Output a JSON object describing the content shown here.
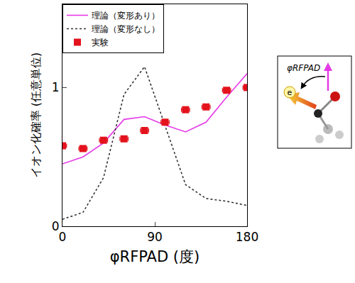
{
  "chart_data": {
    "type": "line",
    "xlabel": "φRFPAD (度)",
    "ylabel": "イオン化確率 (任意単位)",
    "x": [
      0,
      20,
      40,
      60,
      80,
      100,
      120,
      140,
      160,
      180
    ],
    "series": [
      {
        "name": "理論（変形あり）",
        "type": "line",
        "color": "#e53ae6",
        "line_style": "solid",
        "values": [
          0.45,
          0.5,
          0.6,
          0.77,
          0.79,
          0.73,
          0.68,
          0.75,
          0.93,
          1.1
        ]
      },
      {
        "name": "理論（変形なし）",
        "type": "line",
        "color": "#333333",
        "line_style": "dotted",
        "values": [
          0.05,
          0.1,
          0.35,
          0.95,
          1.15,
          0.73,
          0.3,
          0.2,
          0.18,
          0.15
        ]
      },
      {
        "name": "実験",
        "type": "scatter",
        "color": "#e3121c",
        "marker": "square",
        "values": [
          0.58,
          0.56,
          0.62,
          0.63,
          0.69,
          0.75,
          0.84,
          0.86,
          0.98,
          1.0
        ],
        "x_error": [
          4,
          4,
          4,
          4,
          4,
          4,
          4,
          4,
          4,
          4
        ]
      }
    ],
    "xlim": [
      0,
      180
    ],
    "xticks": [
      0,
      90,
      180
    ],
    "ylim": [
      0,
      1.6
    ],
    "yticks": [
      0,
      1
    ],
    "grid": false,
    "legend": "top left",
    "annotations": [
      {
        "text": "φRFPAD"
      },
      {
        "text": "e"
      }
    ]
  }
}
